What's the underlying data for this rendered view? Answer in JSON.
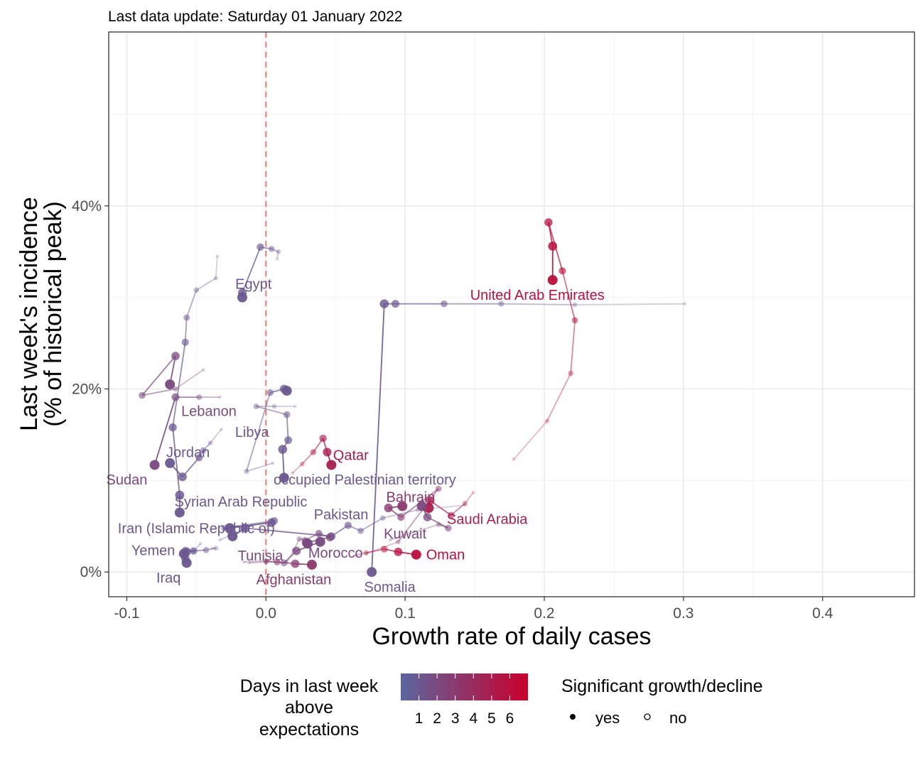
{
  "chart_data": {
    "type": "scatter",
    "subtitle": "Last data update: Saturday 01 January 2022",
    "xlabel": "Growth rate of daily cases",
    "ylabel_lines": [
      "Last week's incidence",
      "(% of historical peak)"
    ],
    "xlim": [
      -0.113,
      0.466
    ],
    "ylim": [
      -2.7,
      59.0
    ],
    "x_ticks": [
      {
        "value": -0.1,
        "label": "-0.1"
      },
      {
        "value": 0.0,
        "label": "0.0"
      },
      {
        "value": 0.1,
        "label": "0.1"
      },
      {
        "value": 0.2,
        "label": "0.2"
      },
      {
        "value": 0.3,
        "label": "0.3"
      },
      {
        "value": 0.4,
        "label": "0.4"
      }
    ],
    "y_ticks": [
      {
        "value": 0,
        "label": "0%"
      },
      {
        "value": 20,
        "label": "20%"
      },
      {
        "value": 40,
        "label": "40%"
      }
    ],
    "reference_line_x": 0,
    "reference_line_color": "#f8766d",
    "grid": true,
    "color_scale": {
      "low": "#5b66a0",
      "high": "#c8002d",
      "min": 0,
      "max": 7
    },
    "legend_color": {
      "title_lines": [
        "Days in last week",
        "above",
        "expectations"
      ],
      "labels": [
        "1",
        "2",
        "3",
        "4",
        "5",
        "6"
      ],
      "placement": "bottom"
    },
    "legend_shape": {
      "title": "Significant growth/decline",
      "items": [
        {
          "label": "yes",
          "filled": true
        },
        {
          "label": "no",
          "filled": false
        }
      ]
    },
    "series": [
      {
        "name": "Egypt",
        "color_days": 1,
        "label_at": [
          -0.009,
          31.5
        ],
        "points": [
          [
            0.008,
            34.2
          ],
          [
            0.009,
            35.0
          ],
          [
            0.004,
            35.3
          ],
          [
            -0.004,
            35.5
          ],
          [
            -0.017,
            30.5
          ],
          [
            -0.017,
            30.0
          ]
        ]
      },
      {
        "name": "Somalia",
        "color_days": 1,
        "label_at": [
          0.089,
          -1.6
        ],
        "points": [
          [
            0.301,
            29.3
          ],
          [
            0.222,
            29.2
          ],
          [
            0.169,
            29.3
          ],
          [
            0.128,
            29.3
          ],
          [
            0.093,
            29.3
          ],
          [
            0.085,
            29.3
          ],
          [
            0.076,
            0.0
          ]
        ]
      },
      {
        "name": "United Arab Emirates",
        "color_days": 6,
        "label_at": [
          0.195,
          30.3
        ],
        "points": [
          [
            0.178,
            12.3
          ],
          [
            0.202,
            16.5
          ],
          [
            0.219,
            21.7
          ],
          [
            0.222,
            27.5
          ],
          [
            0.213,
            32.9
          ],
          [
            0.203,
            38.2
          ],
          [
            0.206,
            35.6
          ],
          [
            0.206,
            31.9
          ]
        ]
      },
      {
        "name": "Qatar",
        "color_days": 5,
        "label_at": [
          0.061,
          12.8
        ],
        "points": [
          [
            0.019,
            10.8
          ],
          [
            0.026,
            11.8
          ],
          [
            0.034,
            13.1
          ],
          [
            0.041,
            14.6
          ],
          [
            0.044,
            13.1
          ],
          [
            0.047,
            11.7
          ]
        ]
      },
      {
        "name": "Lebanon",
        "color_days": 2,
        "label_at": [
          -0.041,
          17.6
        ],
        "points": [
          [
            -0.033,
            19.1
          ],
          [
            -0.048,
            19.1
          ],
          [
            -0.065,
            19.1
          ],
          [
            -0.08,
            11.7
          ]
        ]
      },
      {
        "name": "Libya",
        "color_days": 1,
        "label_at": [
          -0.01,
          15.3
        ],
        "points": [
          [
            0.021,
            18.1
          ],
          [
            0.006,
            18.1
          ],
          [
            -0.007,
            18.1
          ],
          [
            0.015,
            17.2
          ],
          [
            0.016,
            14.4
          ],
          [
            0.012,
            13.4
          ],
          [
            0.013,
            10.3
          ]
        ]
      },
      {
        "name": "Jordan",
        "color_days": 1,
        "label_at": [
          -0.056,
          13.1
        ],
        "points": [
          [
            -0.032,
            15.6
          ],
          [
            -0.04,
            14.1
          ],
          [
            -0.045,
            13.3
          ],
          [
            -0.048,
            12.5
          ],
          [
            -0.06,
            10.4
          ],
          [
            -0.069,
            11.9
          ]
        ]
      },
      {
        "name": "Sudan",
        "color_days": 2,
        "label_at": [
          -0.1,
          10.1
        ],
        "points": [
          [
            -0.045,
            22.1
          ],
          [
            -0.065,
            20.0
          ],
          [
            -0.089,
            19.3
          ],
          [
            -0.065,
            23.6
          ],
          [
            -0.069,
            20.5
          ]
        ]
      },
      {
        "name": "occupied Palestinian territory",
        "color_days": 1,
        "label_at": [
          0.071,
          10.1
        ],
        "points": [
          [
            0.005,
            11.9
          ],
          [
            -0.014,
            11.0
          ],
          [
            0.003,
            19.6
          ],
          [
            0.013,
            20.0
          ],
          [
            0.015,
            19.8
          ]
        ]
      },
      {
        "name": "Syrian Arab Republic",
        "color_days": 1,
        "label_at": [
          -0.018,
          7.7
        ],
        "points": [
          [
            -0.035,
            34.5
          ],
          [
            -0.036,
            32.1
          ],
          [
            -0.05,
            30.8
          ],
          [
            -0.057,
            27.8
          ],
          [
            -0.058,
            25.1
          ],
          [
            -0.067,
            15.8
          ],
          [
            -0.062,
            8.4
          ],
          [
            -0.062,
            6.5
          ]
        ]
      },
      {
        "name": "Bahrain",
        "color_days": 3,
        "label_at": [
          0.104,
          8.2
        ],
        "points": [
          [
            0.072,
            2.0
          ],
          [
            0.095,
            3.3
          ],
          [
            0.124,
            9.1
          ],
          [
            0.097,
            6.0
          ],
          [
            0.088,
            7.0
          ],
          [
            0.098,
            7.2
          ]
        ]
      },
      {
        "name": "Pakistan",
        "color_days": 1,
        "label_at": [
          0.054,
          6.3
        ],
        "points": [
          [
            0.143,
            7.3
          ],
          [
            0.109,
            6.8
          ],
          [
            0.084,
            5.9
          ],
          [
            0.068,
            4.5
          ],
          [
            0.059,
            5.1
          ],
          [
            0.047,
            3.9
          ],
          [
            -0.015,
            4.8
          ],
          [
            -0.024,
            3.9
          ]
        ]
      },
      {
        "name": "Iran (Islamic Republic of)",
        "color_days": 1,
        "label_at": [
          -0.05,
          4.8
        ],
        "points": [
          [
            -0.033,
            3.5
          ],
          [
            -0.026,
            4.0
          ],
          [
            -0.03,
            4.8
          ],
          [
            0.006,
            5.6
          ],
          [
            0.004,
            5.4
          ],
          [
            -0.026,
            4.8
          ]
        ]
      },
      {
        "name": "Saudi Arabia",
        "color_days": 5,
        "label_at": [
          0.159,
          5.8
        ],
        "points": [
          [
            0.149,
            8.7
          ],
          [
            0.143,
            7.5
          ],
          [
            0.133,
            6.2
          ],
          [
            0.118,
            7.8
          ],
          [
            0.117,
            7.0
          ]
        ]
      },
      {
        "name": "Kuwait",
        "color_days": 2,
        "label_at": [
          0.1,
          4.2
        ],
        "points": [
          [
            0.089,
            3.5
          ],
          [
            0.124,
            5.2
          ],
          [
            0.131,
            4.8
          ],
          [
            0.116,
            6.0
          ],
          [
            0.112,
            7.2
          ]
        ]
      },
      {
        "name": "Yemen",
        "color_days": 1,
        "label_at": [
          -0.081,
          2.4
        ],
        "points": [
          [
            -0.039,
            2.6
          ],
          [
            -0.036,
            2.6
          ],
          [
            -0.043,
            2.4
          ],
          [
            -0.052,
            2.3
          ],
          [
            -0.057,
            2.2
          ],
          [
            -0.059,
            2.0
          ]
        ]
      },
      {
        "name": "Oman",
        "color_days": 6,
        "label_at": [
          0.129,
          1.9
        ],
        "points": [
          [
            0.064,
            1.8
          ],
          [
            0.072,
            2.1
          ],
          [
            0.085,
            2.5
          ],
          [
            0.095,
            2.2
          ],
          [
            0.108,
            1.9
          ]
        ]
      },
      {
        "name": "Morocco",
        "color_days": 2,
        "label_at": [
          0.05,
          2.1
        ],
        "points": [
          [
            0.015,
            1.1
          ],
          [
            0.02,
            2.4
          ],
          [
            0.024,
            3.6
          ],
          [
            0.028,
            3.5
          ],
          [
            0.038,
            4.2
          ],
          [
            0.046,
            3.8
          ],
          [
            0.029,
            3.2
          ],
          [
            0.03,
            3.1
          ]
        ]
      },
      {
        "name": "Tunisia",
        "color_days": 2,
        "label_at": [
          -0.004,
          1.8
        ],
        "points": [
          [
            -0.016,
            1.1
          ],
          [
            0.0,
            1.2
          ],
          [
            0.013,
            1.0
          ],
          [
            0.022,
            2.3
          ],
          [
            0.039,
            3.3
          ]
        ]
      },
      {
        "name": "Iraq",
        "color_days": 1,
        "label_at": [
          -0.07,
          -0.6
        ],
        "points": [
          [
            -0.047,
            3.1
          ],
          [
            -0.052,
            2.3
          ],
          [
            -0.058,
            2.4
          ],
          [
            -0.058,
            1.5
          ],
          [
            -0.057,
            1.0
          ]
        ]
      },
      {
        "name": "Afghanistan",
        "color_days": 3,
        "label_at": [
          0.02,
          -0.8
        ],
        "points": [
          [
            -0.012,
            1.0
          ],
          [
            0.0,
            1.1
          ],
          [
            0.008,
            1.1
          ],
          [
            0.021,
            0.9
          ],
          [
            0.033,
            0.8
          ]
        ]
      }
    ]
  }
}
